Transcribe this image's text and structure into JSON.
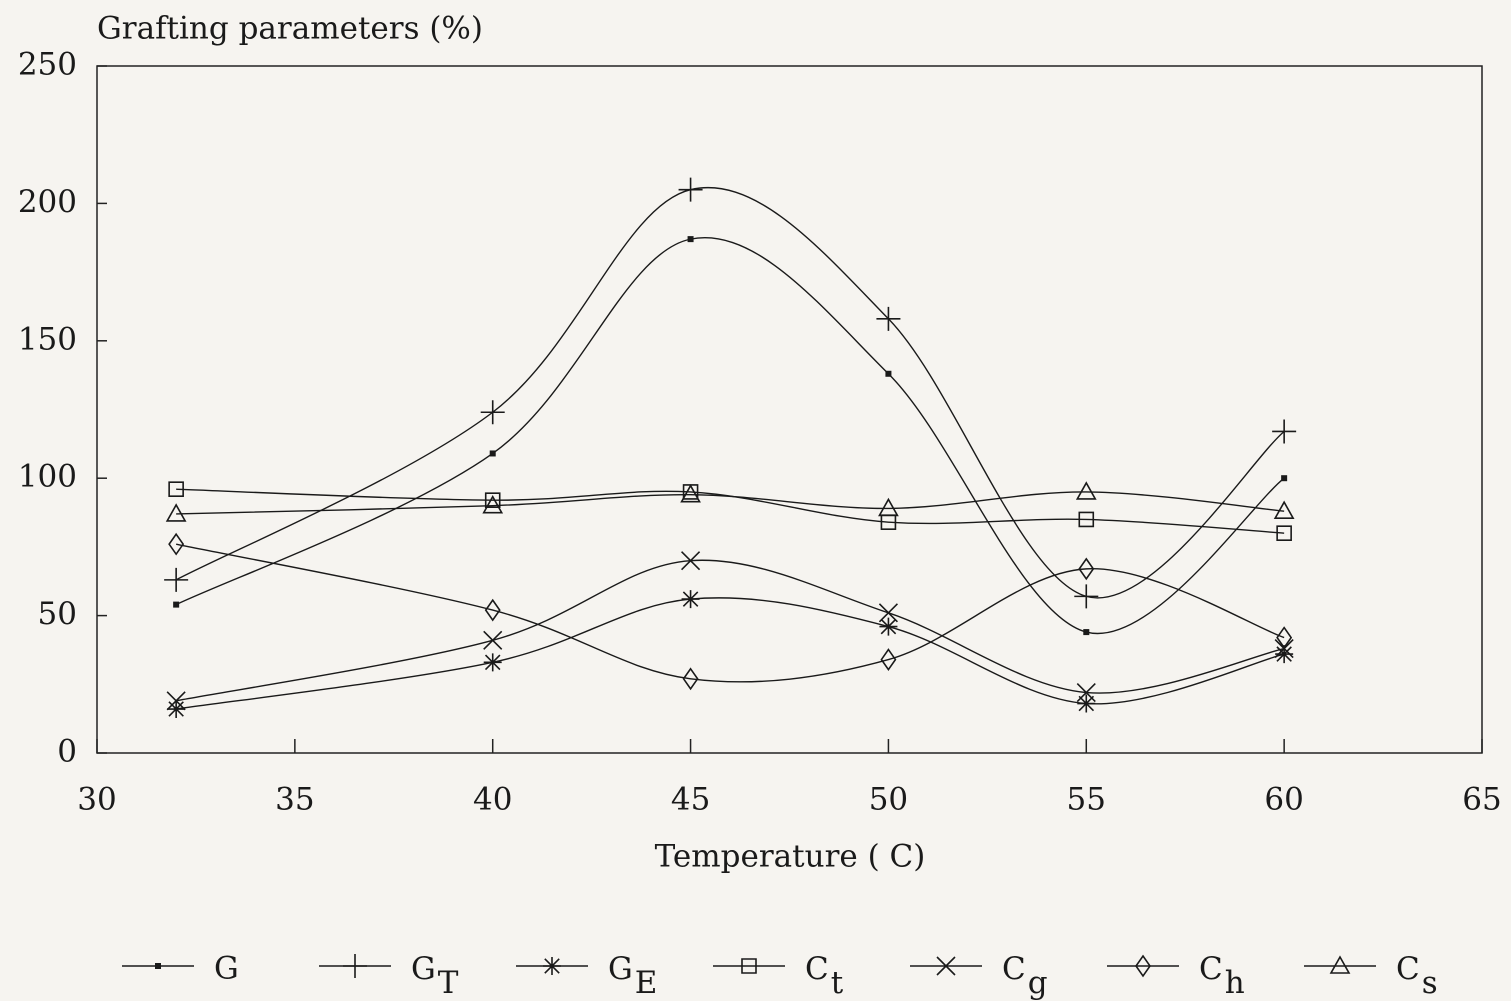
{
  "chart_data": {
    "type": "scatter",
    "y_label": "Grafting parameters (%)",
    "x_label": "Temperature ( C)",
    "x": [
      32,
      40,
      45,
      50,
      55,
      60
    ],
    "xlim": [
      30,
      65
    ],
    "xticks": [
      30,
      35,
      40,
      45,
      50,
      55,
      60,
      65
    ],
    "ylim": [
      0,
      250
    ],
    "yticks": [
      0,
      50,
      100,
      150,
      200,
      250
    ],
    "legend": "bottom",
    "series": [
      {
        "name": "G",
        "marker": "dot",
        "color": "#1a1a1a",
        "values": [
          54,
          109,
          187,
          138,
          44,
          100
        ]
      },
      {
        "name": "GT",
        "marker": "plus",
        "color": "#1a1a1a",
        "values": [
          63,
          124,
          205,
          158,
          57,
          117
        ]
      },
      {
        "name": "GE",
        "marker": "asterisk",
        "color": "#1a1a1a",
        "values": [
          16,
          33,
          56,
          46,
          18,
          36
        ]
      },
      {
        "name": "Ct",
        "marker": "square",
        "color": "#1a1a1a",
        "values": [
          96,
          92,
          95,
          84,
          85,
          80
        ]
      },
      {
        "name": "Cg",
        "marker": "x",
        "color": "#1a1a1a",
        "values": [
          19,
          41,
          70,
          51,
          22,
          38
        ]
      },
      {
        "name": "Ch",
        "marker": "diamond",
        "color": "#1a1a1a",
        "values": [
          76,
          52,
          27,
          34,
          67,
          42
        ]
      },
      {
        "name": "Cs",
        "marker": "triangle",
        "color": "#1a1a1a",
        "values": [
          87,
          90,
          94,
          89,
          95,
          88
        ]
      }
    ]
  }
}
